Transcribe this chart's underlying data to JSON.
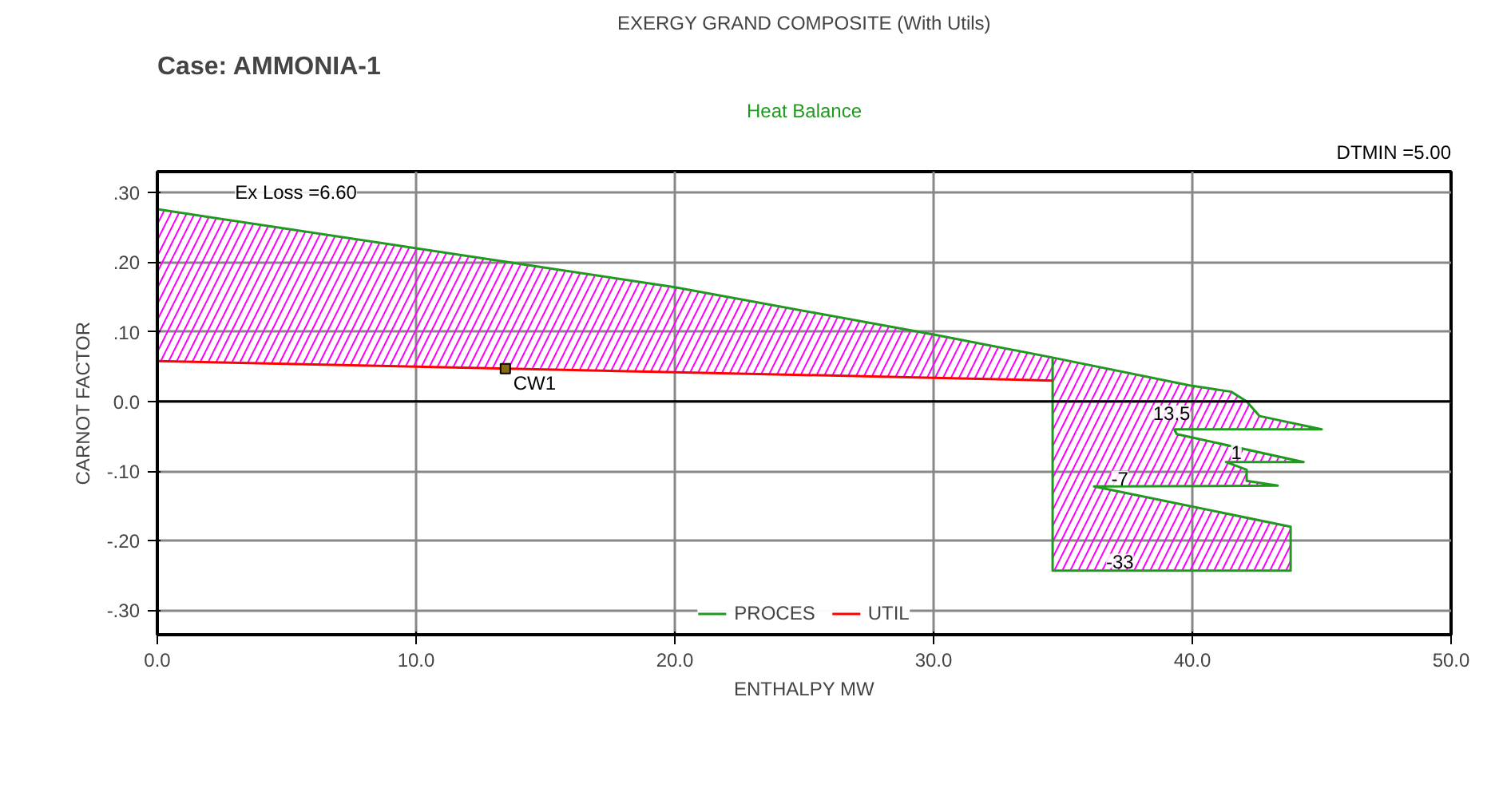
{
  "chart_data": {
    "type": "line",
    "title": "EXERGY GRAND COMPOSITE (With Utils)",
    "subtitle": "Case: AMMONIA-1",
    "xlabel": "ENTHALPY MW",
    "ylabel": "CARNOT FACTOR",
    "xlim": [
      0,
      50
    ],
    "ylim": [
      -0.335,
      0.33
    ],
    "xticks": [
      {
        "value": 0,
        "label": "0.0"
      },
      {
        "value": 10,
        "label": "10.0"
      },
      {
        "value": 20,
        "label": "20.0"
      },
      {
        "value": 30,
        "label": "30.0"
      },
      {
        "value": 40,
        "label": "40.0"
      },
      {
        "value": 50,
        "label": "50.0"
      }
    ],
    "yticks": [
      {
        "value": -0.3,
        "label": "-.30"
      },
      {
        "value": -0.2,
        "label": "-.20"
      },
      {
        "value": -0.1,
        "label": "-.10"
      },
      {
        "value": 0,
        "label": "0.0"
      },
      {
        "value": 0.1,
        "label": ".10"
      },
      {
        "value": 0.2,
        "label": ".20"
      },
      {
        "value": 0.3,
        "label": ".30"
      }
    ],
    "grid": true,
    "legend": "bottom",
    "marker": "none",
    "line_style": "solid",
    "ref_lines": [
      {
        "axis": "y",
        "value": 0,
        "color": "#000000"
      }
    ],
    "series": [
      {
        "type": "area",
        "name": "PROCES",
        "color": "#1f9a1f",
        "x": [
          0,
          10,
          20,
          30,
          34.6,
          39.9,
          41.5,
          42.1,
          42.6,
          45.0,
          39.3,
          39.4,
          44.3,
          41.3,
          42.1,
          42.1,
          43.3,
          36.2,
          43.8,
          43.8,
          34.6,
          34.6
        ],
        "values": [
          0.276,
          0.22,
          0.164,
          0.096,
          0.063,
          0.023,
          0.014,
          0,
          -0.021,
          -0.04,
          -0.04,
          -0.047,
          -0.087,
          -0.087,
          -0.098,
          -0.114,
          -0.121,
          -0.122,
          -0.18,
          -0.243,
          -0.243,
          0.063
        ]
      },
      {
        "name": "UTIL",
        "color": "#ff0000",
        "x": [
          0,
          10,
          20,
          30,
          34.6
        ],
        "values": [
          0.058,
          0.05,
          0.042,
          0.034,
          0.03
        ]
      },
      {
        "type": "scatter",
        "marker": "square",
        "name": "CW1",
        "color": "#8b6a14",
        "x": [
          13.45
        ],
        "values": [
          0.047
        ]
      }
    ],
    "annotations": [
      "Heat Balance",
      "DTMIN =5.00",
      "Ex Loss =6.60",
      "13.5",
      "1",
      "-7",
      "-33"
    ]
  }
}
